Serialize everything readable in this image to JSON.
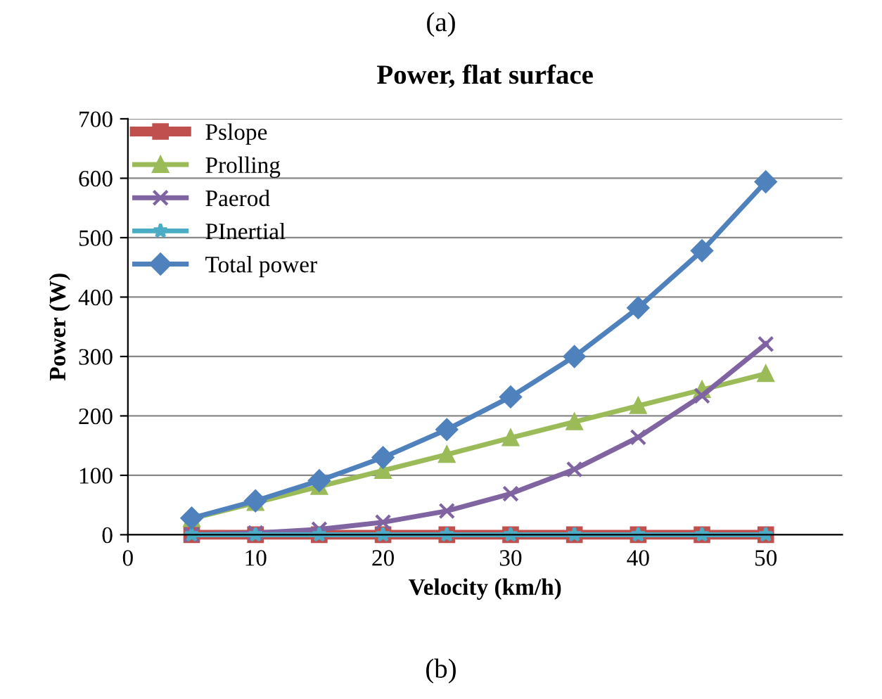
{
  "chart_data": {
    "type": "line",
    "title": "Power, flat surface",
    "xlabel": "Velocity (km/h)",
    "ylabel": "Power (W)",
    "annotations": [
      "(a)",
      "(b)"
    ],
    "x": [
      5,
      10,
      15,
      20,
      25,
      30,
      35,
      40,
      45,
      50
    ],
    "series": [
      {
        "name": "Pslope",
        "color": "#c0504d",
        "marker": "square",
        "values": [
          0,
          0,
          0,
          0,
          0,
          0,
          0,
          0,
          0,
          0
        ]
      },
      {
        "name": "Prolling",
        "color": "#9bbb59",
        "marker": "triangle",
        "values": [
          27,
          54,
          81,
          108,
          135,
          163,
          190,
          217,
          244,
          271
        ]
      },
      {
        "name": "Paerod",
        "color": "#8064a2",
        "marker": "cross",
        "values": [
          0,
          3,
          9,
          21,
          40,
          69,
          110,
          164,
          234,
          321
        ]
      },
      {
        "name": "PInertial",
        "color": "#4bacc6",
        "marker": "star",
        "values": [
          0,
          0,
          0,
          0,
          0,
          0,
          0,
          0,
          0,
          0
        ]
      },
      {
        "name": "Total power",
        "color": "#4f81bd",
        "marker": "diamond",
        "values": [
          28,
          57,
          91,
          130,
          177,
          232,
          300,
          382,
          478,
          594
        ]
      }
    ],
    "xlim": [
      0,
      56
    ],
    "xticks": [
      0,
      10,
      20,
      30,
      40,
      50
    ],
    "ylim": [
      0,
      700
    ],
    "yticks": [
      0,
      100,
      200,
      300,
      400,
      500,
      600,
      700
    ],
    "grid": "y",
    "legend": "top left",
    "line_style": "solid"
  }
}
